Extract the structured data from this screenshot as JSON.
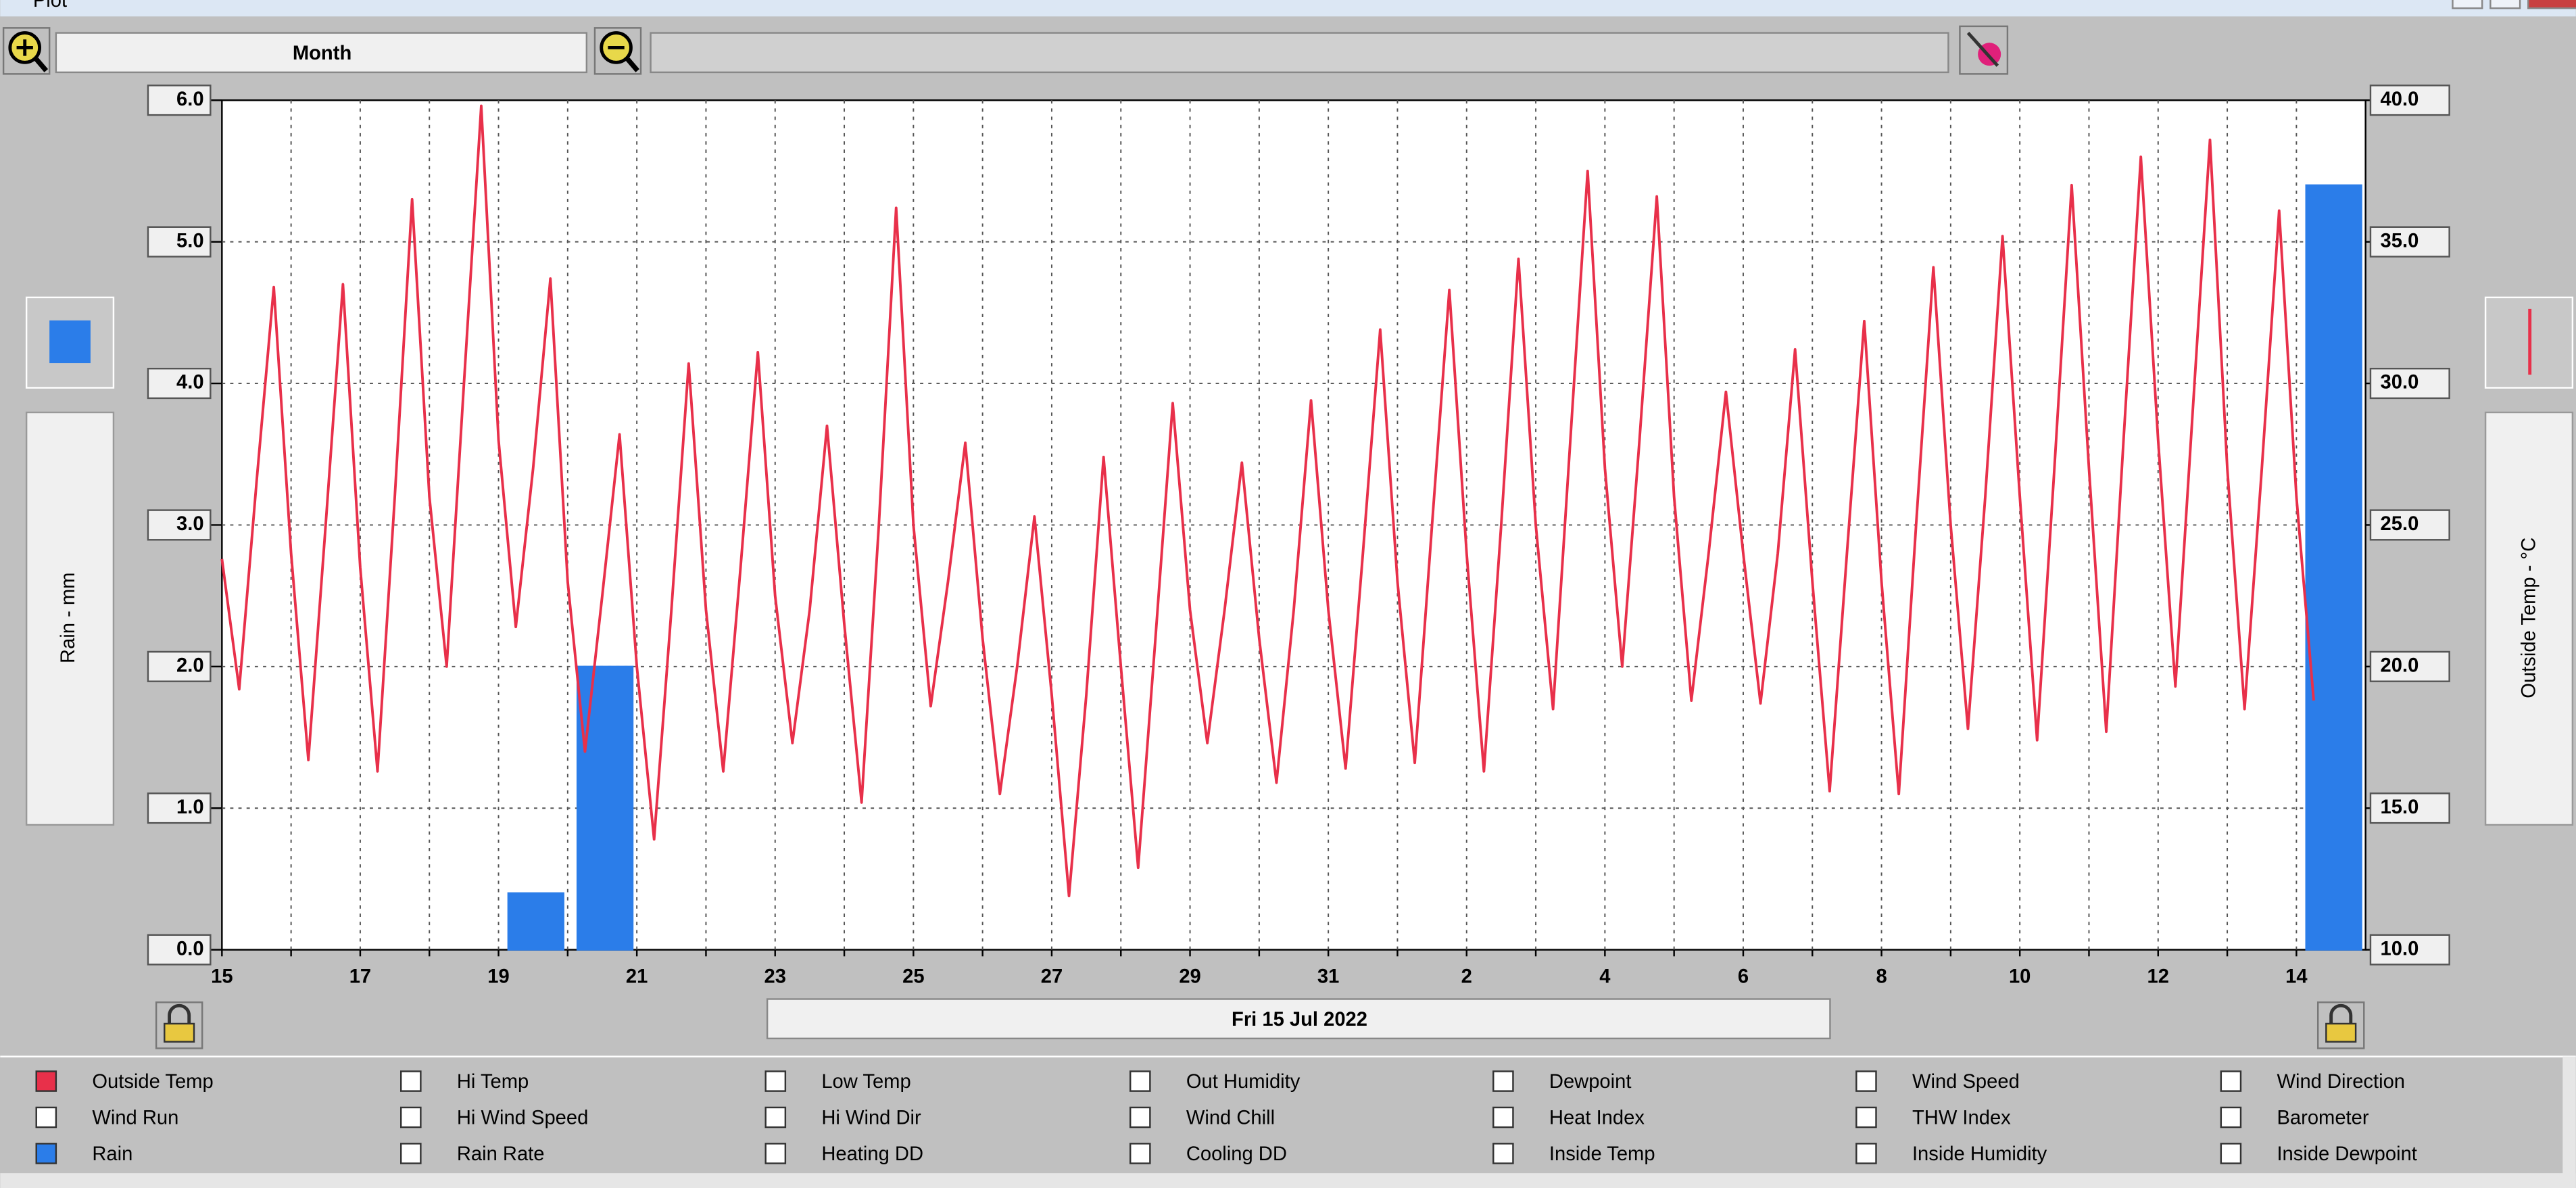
{
  "window": {
    "title": "Plot"
  },
  "toolbar": {
    "period": "Month"
  },
  "chart_data": {
    "type": "combo",
    "categories": [
      "15",
      null,
      "17",
      null,
      "19",
      null,
      "21",
      null,
      "23",
      null,
      "25",
      null,
      "27",
      null,
      "29",
      null,
      "31",
      null,
      "2",
      null,
      "4",
      null,
      "6",
      null,
      "8",
      null,
      "10",
      null,
      "12",
      null,
      "14"
    ],
    "series": [
      {
        "name": "Rain",
        "type": "bar",
        "color": "#2b7de9",
        "values": [
          0,
          0,
          0,
          0,
          0.4,
          2.0,
          0,
          0,
          0,
          0,
          0,
          0,
          0,
          0,
          0,
          0,
          0,
          0,
          0,
          0,
          0,
          0,
          0,
          0,
          0,
          0,
          0,
          0,
          0,
          0,
          5.4
        ]
      },
      {
        "name": "Outside Temp",
        "type": "line",
        "axis": "y2",
        "color": "#e8304a",
        "values": [
          [
            23.8,
            19.2,
            26.5,
            33.4
          ],
          [
            24.0,
            16.7,
            25.0,
            33.5
          ],
          [
            23.5,
            16.3,
            26.0,
            36.5
          ],
          [
            26.0,
            20.0,
            30.0,
            39.8
          ],
          [
            28.0,
            21.4,
            27.0,
            33.7
          ],
          [
            23.0,
            17.0,
            22.5,
            28.2
          ],
          [
            20.0,
            13.9,
            22.0,
            30.7
          ],
          [
            22.0,
            16.3,
            23.5,
            31.1
          ],
          [
            22.5,
            17.3,
            22.0,
            28.5
          ],
          [
            21.5,
            15.2,
            25.0,
            36.2
          ],
          [
            25.0,
            18.6,
            23.0,
            27.9
          ],
          [
            21.0,
            15.5,
            20.0,
            25.3
          ],
          [
            19.0,
            11.9,
            19.0,
            27.4
          ],
          [
            20.0,
            12.9,
            21.0,
            29.3
          ],
          [
            22.0,
            17.3,
            22.0,
            27.2
          ],
          [
            21.0,
            15.9,
            22.0,
            29.4
          ],
          [
            22.0,
            16.4,
            24.0,
            31.9
          ],
          [
            23.0,
            16.6,
            25.0,
            33.3
          ],
          [
            24.0,
            16.3,
            25.0,
            34.4
          ],
          [
            25.0,
            18.5,
            28.0,
            37.5
          ],
          [
            27.0,
            20.0,
            28.0,
            36.6
          ],
          [
            26.0,
            18.8,
            24.0,
            29.7
          ],
          [
            24.0,
            18.7,
            24.0,
            31.2
          ],
          [
            23.0,
            15.6,
            24.0,
            32.2
          ],
          [
            23.0,
            15.5,
            25.0,
            34.1
          ],
          [
            25.0,
            17.8,
            26.0,
            35.2
          ],
          [
            26.0,
            17.4,
            27.0,
            37.0
          ],
          [
            27.0,
            17.7,
            28.0,
            38.0
          ],
          [
            28.0,
            19.3,
            29.0,
            38.6
          ],
          [
            27.0,
            18.5,
            27.0,
            36.1
          ],
          [
            26.0,
            18.8,
            null,
            null
          ]
        ]
      }
    ],
    "ylabel": "Rain - mm",
    "y2label": "Outside Temp - °C",
    "ylim": [
      0,
      6
    ],
    "yticks": [
      {
        "value": 0,
        "label": "0.0"
      },
      {
        "value": 1,
        "label": "1.0"
      },
      {
        "value": 2,
        "label": "2.0"
      },
      {
        "value": 3,
        "label": "3.0"
      },
      {
        "value": 4,
        "label": "4.0"
      },
      {
        "value": 5,
        "label": "5.0"
      },
      {
        "value": 6,
        "label": "6.0"
      }
    ],
    "y2lim": [
      10,
      40
    ],
    "y2ticks": [
      {
        "value": 10,
        "label": "10.0"
      },
      {
        "value": 15,
        "label": "15.0"
      },
      {
        "value": 20,
        "label": "20.0"
      },
      {
        "value": 25,
        "label": "25.0"
      },
      {
        "value": 30,
        "label": "30.0"
      },
      {
        "value": 35,
        "label": "35.0"
      },
      {
        "value": 40,
        "label": "40.0"
      }
    ],
    "grid": true,
    "date_label": "Fri 15 Jul 2022"
  },
  "options": [
    "Hi Temp",
    "Low Temp",
    "Out Humidity",
    "Dewpoint",
    "Wind Speed",
    "Wind Direction",
    "Wind Run",
    "Hi Wind Speed",
    "Hi Wind Dir",
    "Wind Chill",
    "Heat Index",
    "THW Index",
    "Barometer",
    "Rain Rate",
    "Heating DD",
    "Cooling DD",
    "Inside Temp",
    "Inside Humidity",
    "Inside Dewpoint"
  ]
}
